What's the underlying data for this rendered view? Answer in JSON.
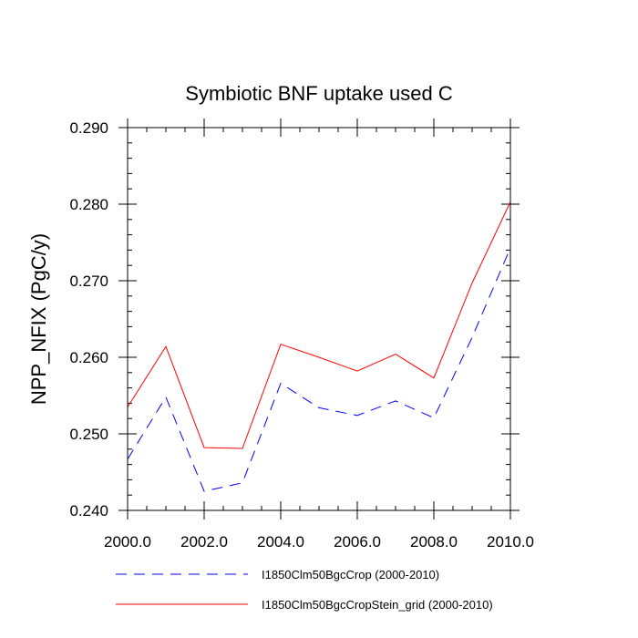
{
  "chart_data": {
    "type": "line",
    "title": "Symbiotic BNF uptake used C",
    "xlabel": "",
    "ylabel": "NPP_NFIX  (PgC/y)",
    "xlim": [
      2000,
      2010
    ],
    "ylim": [
      0.24,
      0.29
    ],
    "x": [
      2000,
      2001,
      2002,
      2003,
      2004,
      2005,
      2006,
      2007,
      2008,
      2009,
      2010
    ],
    "x_ticks": [
      2000,
      2002,
      2004,
      2006,
      2008,
      2010
    ],
    "x_tick_labels": [
      "2000.0",
      "2002.0",
      "2004.0",
      "2006.0",
      "2008.0",
      "2010.0"
    ],
    "y_ticks": [
      0.24,
      0.25,
      0.26,
      0.27,
      0.28,
      0.29
    ],
    "y_tick_labels": [
      "0.240",
      "0.250",
      "0.260",
      "0.270",
      "0.280",
      "0.290"
    ],
    "grid": false,
    "legend_position": "bottom",
    "series": [
      {
        "name": "I1850Clm50BgcCrop (2000-2010)",
        "color": "#0000ff",
        "style": "dashed",
        "values": [
          0.2467,
          0.2548,
          0.2425,
          0.2436,
          0.2566,
          0.2534,
          0.2524,
          0.2543,
          0.2521,
          0.2626,
          0.2743
        ]
      },
      {
        "name": "I1850Clm50BgcCropStein_grid (2000-2010)",
        "color": "#ff0000",
        "style": "solid",
        "values": [
          0.2535,
          0.2614,
          0.2482,
          0.2481,
          0.2617,
          0.26,
          0.2582,
          0.2604,
          0.2573,
          0.2697,
          0.2803
        ]
      }
    ]
  }
}
